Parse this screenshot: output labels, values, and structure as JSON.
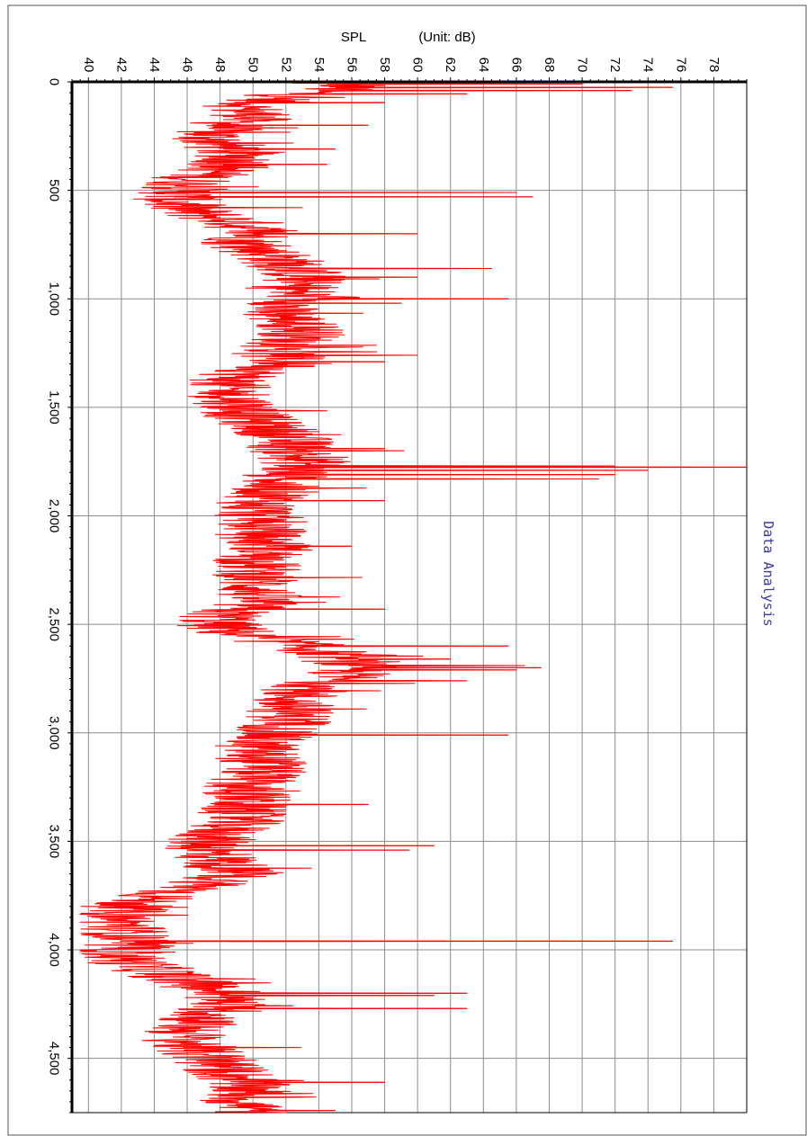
{
  "chart_data": {
    "type": "line",
    "orientation": "rotated",
    "y_axis_title": "SPL",
    "unit_label": "(Unit:  dB)",
    "side_label": "Data Analysis",
    "spl_range": [
      39,
      80
    ],
    "time_range": [
      0,
      4750
    ],
    "spl_ticks": [
      40,
      42,
      44,
      46,
      48,
      50,
      52,
      54,
      56,
      58,
      60,
      62,
      64,
      66,
      68,
      70,
      72,
      74,
      76,
      78
    ],
    "time_ticks": [
      0,
      500,
      1000,
      1500,
      2000,
      2500,
      3000,
      3500,
      4000,
      4500
    ],
    "time_tick_labels": [
      "0",
      "500",
      "1,000",
      "1,500",
      "2,000",
      "2,500",
      "3,000",
      "3,500",
      "4,000",
      "4,500"
    ],
    "series": [
      {
        "color": "#ff0000",
        "profile": [
          [
            0,
            53
          ],
          [
            20,
            56
          ],
          [
            40,
            54
          ],
          [
            60,
            52
          ],
          [
            80,
            51
          ],
          [
            120,
            49
          ],
          [
            160,
            50
          ],
          [
            200,
            48
          ],
          [
            250,
            47
          ],
          [
            300,
            48
          ],
          [
            350,
            49
          ],
          [
            400,
            48
          ],
          [
            450,
            46
          ],
          [
            500,
            45.5
          ],
          [
            550,
            45
          ],
          [
            600,
            46
          ],
          [
            650,
            49
          ],
          [
            700,
            50
          ],
          [
            750,
            49
          ],
          [
            800,
            51
          ],
          [
            850,
            52
          ],
          [
            900,
            53
          ],
          [
            950,
            52
          ],
          [
            1000,
            53
          ],
          [
            1050,
            51
          ],
          [
            1100,
            52
          ],
          [
            1150,
            53
          ],
          [
            1200,
            52
          ],
          [
            1250,
            51
          ],
          [
            1300,
            52
          ],
          [
            1350,
            49
          ],
          [
            1400,
            48
          ],
          [
            1450,
            48.5
          ],
          [
            1500,
            49
          ],
          [
            1550,
            49.5
          ],
          [
            1600,
            51
          ],
          [
            1650,
            52
          ],
          [
            1700,
            52
          ],
          [
            1750,
            53
          ],
          [
            1800,
            52
          ],
          [
            1850,
            51
          ],
          [
            1900,
            51
          ],
          [
            1950,
            50
          ],
          [
            2000,
            50
          ],
          [
            2050,
            50.5
          ],
          [
            2100,
            50
          ],
          [
            2150,
            51
          ],
          [
            2200,
            50
          ],
          [
            2250,
            50
          ],
          [
            2300,
            50
          ],
          [
            2350,
            50
          ],
          [
            2400,
            50
          ],
          [
            2450,
            48
          ],
          [
            2500,
            47.5
          ],
          [
            2550,
            49
          ],
          [
            2600,
            53
          ],
          [
            2650,
            55
          ],
          [
            2700,
            56
          ],
          [
            2750,
            55
          ],
          [
            2800,
            53
          ],
          [
            2850,
            52
          ],
          [
            2900,
            52
          ],
          [
            2950,
            52
          ],
          [
            3000,
            51
          ],
          [
            3050,
            50
          ],
          [
            3100,
            50
          ],
          [
            3150,
            50.5
          ],
          [
            3200,
            50
          ],
          [
            3250,
            49
          ],
          [
            3300,
            49.5
          ],
          [
            3350,
            49
          ],
          [
            3400,
            49
          ],
          [
            3450,
            48
          ],
          [
            3500,
            47
          ],
          [
            3550,
            47
          ],
          [
            3600,
            48
          ],
          [
            3650,
            48.5
          ],
          [
            3700,
            47
          ],
          [
            3750,
            44
          ],
          [
            3800,
            42
          ],
          [
            3850,
            41.5
          ],
          [
            3900,
            42
          ],
          [
            3950,
            42
          ],
          [
            4000,
            41.5
          ],
          [
            4050,
            42
          ],
          [
            4100,
            44
          ],
          [
            4150,
            46
          ],
          [
            4200,
            48
          ],
          [
            4250,
            48
          ],
          [
            4300,
            47
          ],
          [
            4350,
            46
          ],
          [
            4400,
            45.5
          ],
          [
            4450,
            46
          ],
          [
            4500,
            47
          ],
          [
            4550,
            48
          ],
          [
            4600,
            49
          ],
          [
            4650,
            49.5
          ],
          [
            4700,
            49
          ],
          [
            4750,
            50
          ]
        ],
        "spikes": [
          [
            10,
            70
          ],
          [
            25,
            75.5
          ],
          [
            40,
            73
          ],
          [
            55,
            63
          ],
          [
            95,
            58
          ],
          [
            200,
            57
          ],
          [
            310,
            55
          ],
          [
            380,
            54.5
          ],
          [
            510,
            66
          ],
          [
            530,
            67
          ],
          [
            700,
            60
          ],
          [
            860,
            64.5
          ],
          [
            900,
            60
          ],
          [
            1000,
            65.5
          ],
          [
            1020,
            59
          ],
          [
            1260,
            60
          ],
          [
            1290,
            58
          ],
          [
            1690,
            58
          ],
          [
            1770,
            72
          ],
          [
            1775,
            80
          ],
          [
            1790,
            74
          ],
          [
            1810,
            72
          ],
          [
            1830,
            71
          ],
          [
            1930,
            58
          ],
          [
            2140,
            56
          ],
          [
            2430,
            58
          ],
          [
            2600,
            65.5
          ],
          [
            2660,
            62
          ],
          [
            2690,
            66.5
          ],
          [
            2700,
            67.5
          ],
          [
            2710,
            66
          ],
          [
            2760,
            63
          ],
          [
            3010,
            65.5
          ],
          [
            3330,
            57
          ],
          [
            3520,
            61
          ],
          [
            3540,
            59.5
          ],
          [
            3960,
            75.5
          ],
          [
            4200,
            63
          ],
          [
            4210,
            61
          ],
          [
            4270,
            63
          ],
          [
            4610,
            58
          ],
          [
            4740,
            55
          ]
        ]
      }
    ]
  }
}
